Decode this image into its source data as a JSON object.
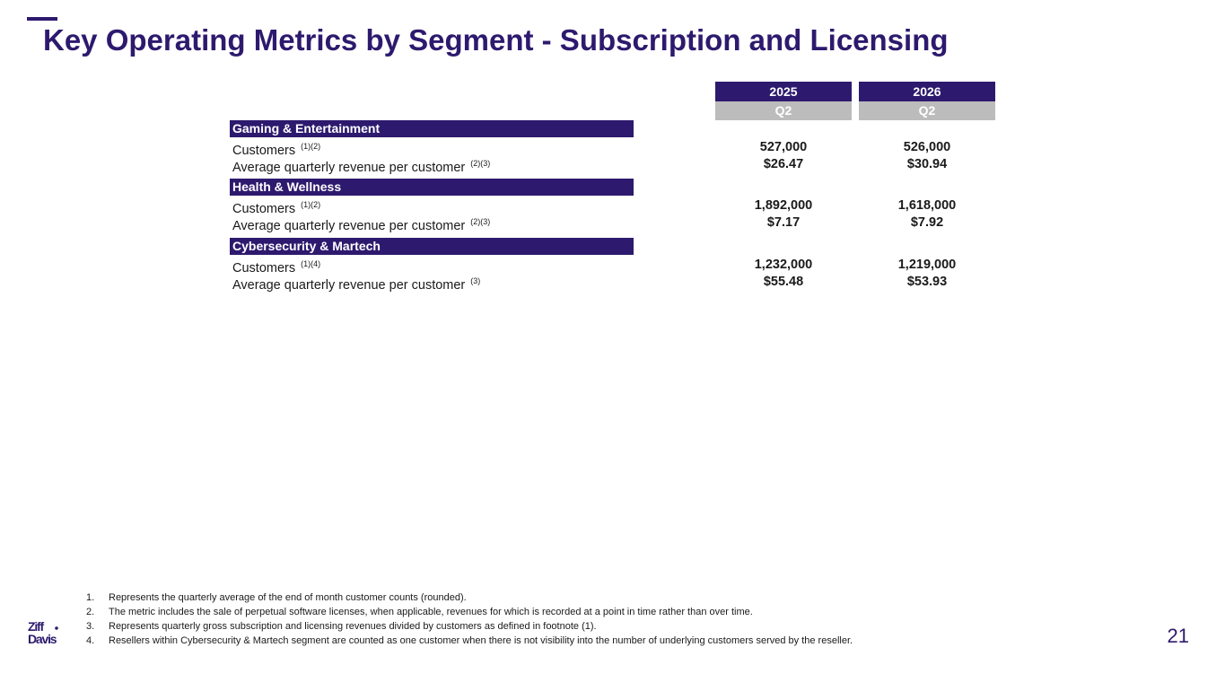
{
  "title": "Key Operating Metrics by Segment - Subscription and Licensing",
  "columns": [
    {
      "year": "2025",
      "quarter": "Q2"
    },
    {
      "year": "2026",
      "quarter": "Q2"
    }
  ],
  "segments": [
    {
      "name": "Gaming & Entertainment",
      "rows": [
        {
          "label": "Customers",
          "note": "(1)(2)",
          "values": [
            "527,000",
            "526,000"
          ]
        },
        {
          "label": "Average quarterly revenue per customer",
          "note": "(2)(3)",
          "values": [
            "$26.47",
            "$30.94"
          ]
        }
      ]
    },
    {
      "name": "Health & Wellness",
      "rows": [
        {
          "label": "Customers",
          "note": "(1)(2)",
          "values": [
            "1,892,000",
            "1,618,000"
          ]
        },
        {
          "label": "Average quarterly revenue per customer",
          "note": "(2)(3)",
          "values": [
            "$7.17",
            "$7.92"
          ]
        }
      ]
    },
    {
      "name": "Cybersecurity & Martech",
      "rows": [
        {
          "label": "Customers",
          "note": "(1)(4)",
          "values": [
            "1,232,000",
            "1,219,000"
          ]
        },
        {
          "label": "Average quarterly revenue per customer",
          "note": "(3)",
          "values": [
            "$55.48",
            "$53.93"
          ]
        }
      ]
    }
  ],
  "footnotes": [
    {
      "num": "1.",
      "text": "Represents the quarterly average of the end of month customer counts (rounded)."
    },
    {
      "num": "2.",
      "text": "The metric includes the sale of perpetual software licenses, when applicable, revenues for which is recorded at a point in time rather than over time."
    },
    {
      "num": "3.",
      "text": "Represents quarterly gross subscription and licensing revenues divided by customers as defined in footnote (1)."
    },
    {
      "num": "4.",
      "text": "Resellers within Cybersecurity & Martech segment are counted as one customer when there is not visibility into the number of underlying customers served by the reseller."
    }
  ],
  "logo": {
    "line1": "Ziff",
    "line2": "Davis"
  },
  "page_number": "21",
  "colors": {
    "brand": "#2d1a6e",
    "quarter_band": "#bcbcbc"
  }
}
